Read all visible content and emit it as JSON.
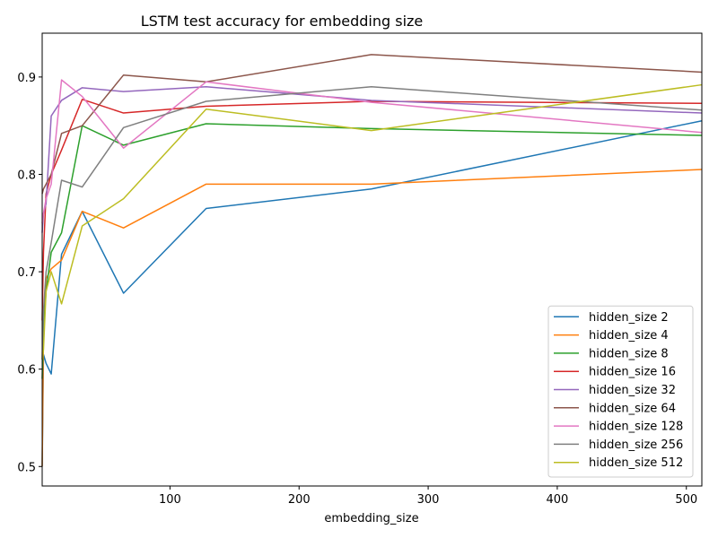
{
  "chart_data": {
    "type": "line",
    "title": "LSTM test accuracy for embedding size",
    "xlabel": "embedding_size",
    "ylabel": "",
    "xlim": [
      1,
      512
    ],
    "ylim": [
      0.48,
      0.945
    ],
    "xticks": [
      100,
      200,
      300,
      400,
      500
    ],
    "yticks": [
      0.5,
      0.6,
      0.7,
      0.8,
      0.9
    ],
    "grid": false,
    "legend_position": "lower right",
    "x": [
      1,
      2,
      4,
      8,
      16,
      32,
      64,
      128,
      256,
      512
    ],
    "series": [
      {
        "name": "hidden_size 2",
        "color": "#1f77b4",
        "values": [
          0.5,
          0.615,
          0.606,
          0.595,
          0.718,
          0.762,
          0.678,
          0.765,
          0.785,
          0.855
        ]
      },
      {
        "name": "hidden_size 4",
        "color": "#ff7f0e",
        "values": [
          0.5,
          0.64,
          0.693,
          0.703,
          0.712,
          0.762,
          0.745,
          0.79,
          0.79,
          0.805
        ]
      },
      {
        "name": "hidden_size 8",
        "color": "#2ca02c",
        "values": [
          0.59,
          0.64,
          0.68,
          0.72,
          0.74,
          0.85,
          0.83,
          0.852,
          0.847,
          0.84
        ]
      },
      {
        "name": "hidden_size 16",
        "color": "#d62728",
        "values": [
          0.65,
          0.72,
          0.78,
          0.8,
          0.825,
          0.877,
          0.863,
          0.87,
          0.875,
          0.873
        ]
      },
      {
        "name": "hidden_size 32",
        "color": "#9467bd",
        "values": [
          0.74,
          0.76,
          0.77,
          0.86,
          0.876,
          0.889,
          0.885,
          0.89,
          0.876,
          0.863
        ]
      },
      {
        "name": "hidden_size 64",
        "color": "#8c564b",
        "values": [
          0.78,
          0.785,
          0.79,
          0.8,
          0.842,
          0.85,
          0.902,
          0.895,
          0.923,
          0.905
        ]
      },
      {
        "name": "hidden_size 128",
        "color": "#e377c2",
        "values": [
          0.75,
          0.76,
          0.775,
          0.79,
          0.897,
          0.88,
          0.827,
          0.895,
          0.874,
          0.843
        ]
      },
      {
        "name": "hidden_size 256",
        "color": "#7f7f7f",
        "values": [
          0.61,
          0.66,
          0.7,
          0.73,
          0.794,
          0.787,
          0.848,
          0.875,
          0.89,
          0.866
        ]
      },
      {
        "name": "hidden_size 512",
        "color": "#bcbd22",
        "values": [
          0.61,
          0.62,
          0.68,
          0.7,
          0.667,
          0.747,
          0.775,
          0.867,
          0.845,
          0.892
        ]
      }
    ]
  }
}
